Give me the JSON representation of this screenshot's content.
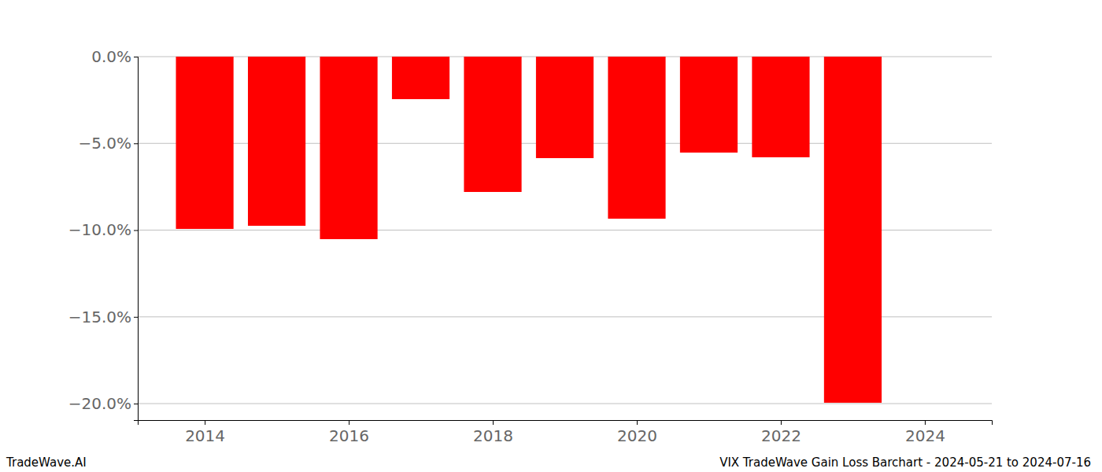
{
  "chart_data": {
    "type": "bar",
    "title": "VIX TradeWave Gain Loss Barchart - 2024-05-21 to 2024-07-16",
    "subtitle": "TradeWave.AI",
    "x": [
      2014,
      2015,
      2016,
      2017,
      2018,
      2019,
      2020,
      2021,
      2022,
      2023
    ],
    "values": [
      -9.93,
      -9.75,
      -10.52,
      -2.45,
      -7.8,
      -5.85,
      -9.34,
      -5.53,
      -5.8,
      -19.95
    ],
    "color": "#ff0000",
    "xlim": [
      2013.07,
      2024.93
    ],
    "xticks": [
      2014,
      2016,
      2018,
      2020,
      2022,
      2024
    ],
    "ylim": [
      -20.95,
      0
    ],
    "yticks": [
      {
        "value": 0,
        "label": "0.0%"
      },
      {
        "value": -5,
        "label": "−5.0%"
      },
      {
        "value": -10,
        "label": "−10.0%"
      },
      {
        "value": -15,
        "label": "−15.0%"
      },
      {
        "value": -20,
        "label": "−20.0%"
      }
    ],
    "grid": true
  }
}
